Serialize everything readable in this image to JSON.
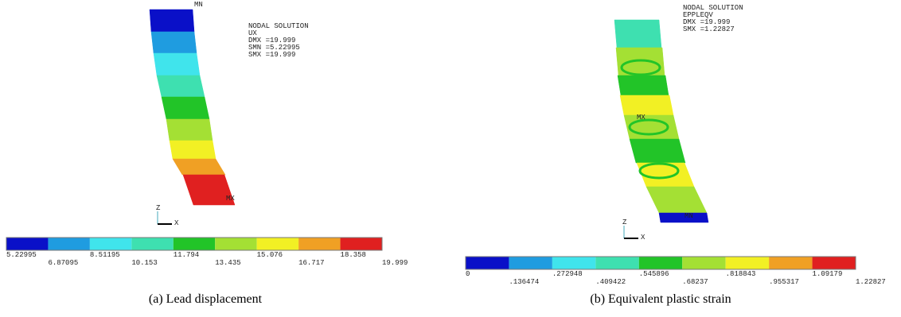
{
  "panels": [
    {
      "info": [
        "NODAL SOLUTION",
        "UX",
        "DMX =19.999",
        "SMN =5.22995",
        "SMX =19.999"
      ],
      "markers": [
        "MN",
        "MX"
      ],
      "axes": [
        "Z",
        "X"
      ],
      "legend": [
        "5.22995",
        "6.87095",
        "8.51195",
        "10.153",
        "11.794",
        "13.435",
        "15.076",
        "16.717",
        "18.358",
        "19.999"
      ],
      "caption": "(a) Lead displacement"
    },
    {
      "info": [
        "NODAL SOLUTION",
        "EPPLEQV",
        "DMX =19.999",
        "SMX =1.22827"
      ],
      "markers": [
        "MX",
        "MN"
      ],
      "axes": [
        "Z",
        "X"
      ],
      "legend": [
        "0",
        ".136474",
        ".272948",
        ".409422",
        ".545896",
        ".68237",
        ".818843",
        ".955317",
        "1.09179",
        "1.22827"
      ],
      "caption": "(b) Equivalent plastic strain"
    }
  ]
}
